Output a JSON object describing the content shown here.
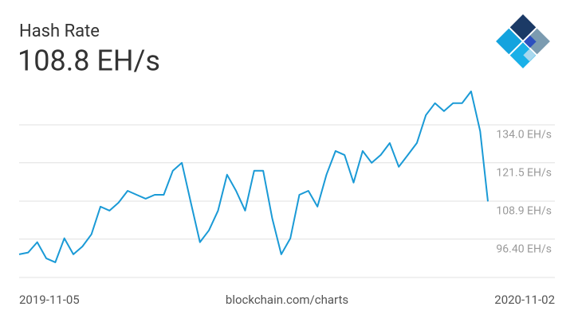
{
  "chart_data": {
    "type": "line",
    "title": "Hash Rate",
    "subtitle": "108.8 EH/s",
    "source": "blockchain.com/charts",
    "x": [
      "2019-11-05",
      "2019-11-12",
      "2019-11-19",
      "2019-11-26",
      "2019-12-03",
      "2019-12-10",
      "2019-12-17",
      "2019-12-24",
      "2019-12-31",
      "2020-01-07",
      "2020-01-14",
      "2020-01-21",
      "2020-01-28",
      "2020-02-04",
      "2020-02-11",
      "2020-02-18",
      "2020-02-25",
      "2020-03-03",
      "2020-03-10",
      "2020-03-17",
      "2020-03-24",
      "2020-03-31",
      "2020-04-07",
      "2020-04-14",
      "2020-04-21",
      "2020-04-28",
      "2020-05-05",
      "2020-05-12",
      "2020-05-19",
      "2020-05-26",
      "2020-06-02",
      "2020-06-09",
      "2020-06-16",
      "2020-06-23",
      "2020-06-30",
      "2020-07-07",
      "2020-07-14",
      "2020-07-21",
      "2020-07-28",
      "2020-08-04",
      "2020-08-11",
      "2020-08-18",
      "2020-08-25",
      "2020-09-01",
      "2020-09-08",
      "2020-09-15",
      "2020-09-22",
      "2020-09-29",
      "2020-10-06",
      "2020-10-13",
      "2020-10-20",
      "2020-10-27",
      "2020-11-02"
    ],
    "series": [
      {
        "name": "Hash Rate",
        "color": "#1a9ad6",
        "values": [
          91.4,
          92.0,
          95.4,
          90.1,
          88.8,
          96.7,
          91.4,
          94.0,
          98.0,
          107.1,
          105.8,
          108.4,
          112.3,
          111.0,
          109.7,
          111.0,
          111.0,
          118.9,
          121.5,
          108.4,
          95.4,
          99.3,
          105.8,
          117.6,
          112.3,
          105.8,
          118.9,
          118.9,
          103.2,
          91.4,
          96.7,
          111.0,
          112.3,
          107.1,
          117.6,
          125.4,
          124.1,
          115.0,
          125.4,
          121.5,
          124.1,
          128.0,
          120.2,
          124.1,
          128.0,
          137.2,
          141.1,
          138.5,
          141.1,
          141.1,
          145.0,
          131.9,
          108.8
        ]
      }
    ],
    "xlim": [
      "2019-11-05",
      "2020-11-02"
    ],
    "xticks": [
      "2019-11-05",
      "2020-11-02"
    ],
    "ylim": [
      83.8,
      148.9
    ],
    "yticks": [
      {
        "value": 96.4,
        "label": "96.40 EH/s"
      },
      {
        "value": 108.9,
        "label": "108.9 EH/s"
      },
      {
        "value": 121.5,
        "label": "121.5 EH/s"
      },
      {
        "value": 134,
        "label": "134.0 EH/s"
      }
    ],
    "grid": true
  }
}
